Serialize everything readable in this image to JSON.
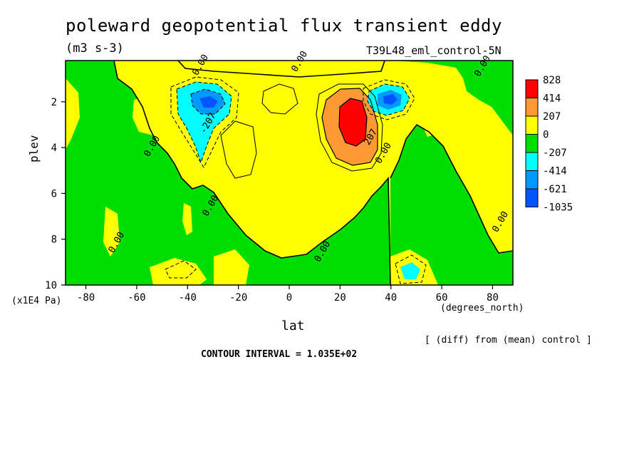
{
  "chart_data": {
    "type": "heatmap",
    "title": "poleward geopotential flux transient eddy",
    "units": "(m3 s-3)",
    "dataset": "T39L48_eml_control-5N",
    "xlabel": "lat",
    "xunits": "(degrees_north)",
    "ylabel": "plev",
    "yunits": "(x1E4 Pa)",
    "xlim": [
      -88,
      88
    ],
    "ylim": [
      0.2,
      10
    ],
    "y_inverted": true,
    "x_ticks": [
      "-80",
      "-60",
      "-40",
      "-20",
      "0",
      "20",
      "40",
      "60",
      "80"
    ],
    "y_ticks": [
      "2",
      "4",
      "6",
      "8",
      "10"
    ],
    "contour_interval_text": "CONTOUR INTERVAL = 1.035E+02",
    "note": "[ (diff) from (mean) control ]",
    "legend_levels": [
      "828",
      "414",
      "207",
      "0",
      "-207",
      "-414",
      "-621",
      "-1035"
    ],
    "legend_colors": [
      "#ff0000",
      "#ff9933",
      "#ffff00",
      "#00dd00",
      "#00ffff",
      "#0099ff",
      "#0055ff"
    ],
    "features": [
      {
        "kind": "maximum",
        "lat": 27,
        "plev": 2.6,
        "approx_value": 800
      },
      {
        "kind": "minimum",
        "lat": -33,
        "plev": 2.0,
        "approx_value": -700
      },
      {
        "kind": "minimum",
        "lat": 39,
        "plev": 1.8,
        "approx_value": -650
      },
      {
        "kind": "minimum",
        "lat": 47,
        "plev": 9.2,
        "approx_value": -450
      }
    ],
    "contour_labels": [
      {
        "text": "0.00",
        "lat": -34,
        "plev": 0.45
      },
      {
        "text": "0.00",
        "lat": 5,
        "plev": 0.3
      },
      {
        "text": "0.00",
        "lat": 77,
        "plev": 0.5
      },
      {
        "text": "-207",
        "lat": -31,
        "plev": 3.0
      },
      {
        "text": "0.00",
        "lat": -53,
        "plev": 4.0
      },
      {
        "text": "207",
        "lat": 33,
        "plev": 3.6
      },
      {
        "text": "0.00",
        "lat": 38,
        "plev": 4.3
      },
      {
        "text": "0.00",
        "lat": -30,
        "plev": 6.6
      },
      {
        "text": "0.00",
        "lat": -67,
        "plev": 8.2
      },
      {
        "text": "0.00",
        "lat": 14,
        "plev": 8.6
      },
      {
        "text": "0.00",
        "lat": 84,
        "plev": 7.3
      }
    ]
  }
}
